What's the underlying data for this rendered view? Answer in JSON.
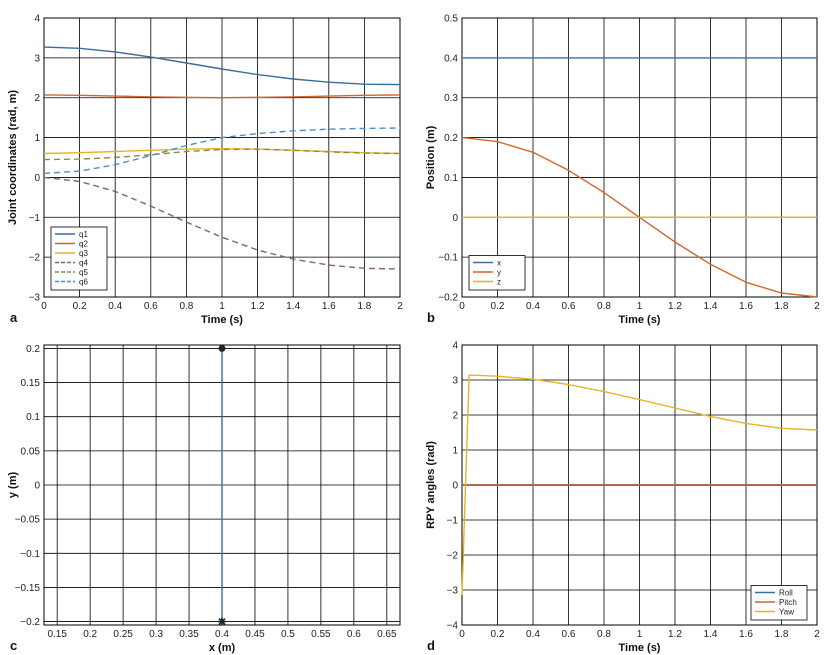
{
  "colors": {
    "blue": "#3a6e9e",
    "orange": "#d4662a",
    "yellow": "#e8b322",
    "purple": "#8c5e78",
    "olive": "#8c8c44",
    "lightblue": "#4a8fc8",
    "grid": "#000000"
  },
  "chart_data": [
    {
      "id": "a",
      "panel_label": "a",
      "type": "line",
      "xlabel": "Time (s)",
      "ylabel": "Joint coordinates (rad, m)",
      "xlim": [
        0,
        2
      ],
      "ylim": [
        -3,
        4
      ],
      "xticks": [
        0,
        0.2,
        0.4,
        0.6,
        0.8,
        1,
        1.2,
        1.4,
        1.6,
        1.8,
        2
      ],
      "yticks": [
        -3,
        -2,
        -1,
        0,
        1,
        2,
        3,
        4
      ],
      "grid": true,
      "legend_position": "bottom-left",
      "x": [
        0,
        0.2,
        0.4,
        0.6,
        0.8,
        1.0,
        1.2,
        1.4,
        1.6,
        1.8,
        2.0
      ],
      "series": [
        {
          "name": "q1",
          "color": "blue",
          "dash": "solid",
          "values": [
            3.27,
            3.24,
            3.15,
            3.02,
            2.87,
            2.72,
            2.58,
            2.47,
            2.39,
            2.34,
            2.33
          ]
        },
        {
          "name": "q2",
          "color": "orange",
          "dash": "solid",
          "values": [
            2.07,
            2.06,
            2.04,
            2.02,
            2.01,
            2.0,
            2.01,
            2.02,
            2.04,
            2.06,
            2.07
          ]
        },
        {
          "name": "q3",
          "color": "yellow",
          "dash": "solid",
          "values": [
            0.6,
            0.62,
            0.65,
            0.68,
            0.71,
            0.72,
            0.71,
            0.68,
            0.65,
            0.62,
            0.6
          ]
        },
        {
          "name": "q4",
          "color": "purple",
          "dash": "dashed",
          "values": [
            0.0,
            -0.1,
            -0.35,
            -0.72,
            -1.12,
            -1.5,
            -1.82,
            -2.05,
            -2.2,
            -2.28,
            -2.3
          ]
        },
        {
          "name": "q5",
          "color": "olive",
          "dash": "dashed",
          "values": [
            0.45,
            0.46,
            0.5,
            0.57,
            0.65,
            0.7,
            0.71,
            0.68,
            0.64,
            0.61,
            0.6
          ]
        },
        {
          "name": "q6",
          "color": "lightblue",
          "dash": "dashed",
          "values": [
            0.1,
            0.16,
            0.32,
            0.55,
            0.8,
            1.0,
            1.1,
            1.17,
            1.21,
            1.23,
            1.24
          ]
        }
      ]
    },
    {
      "id": "b",
      "panel_label": "b",
      "type": "line",
      "xlabel": "Time (s)",
      "ylabel": "Position (m)",
      "xlim": [
        0,
        2
      ],
      "ylim": [
        -0.2,
        0.5
      ],
      "xticks": [
        0,
        0.2,
        0.4,
        0.6,
        0.8,
        1,
        1.2,
        1.4,
        1.6,
        1.8,
        2
      ],
      "yticks": [
        -0.2,
        -0.1,
        0,
        0.1,
        0.2,
        0.3,
        0.4,
        0.5
      ],
      "grid": true,
      "legend_position": "bottom-left",
      "x": [
        0,
        0.2,
        0.4,
        0.6,
        0.8,
        1.0,
        1.2,
        1.4,
        1.6,
        1.8,
        2.0
      ],
      "series": [
        {
          "name": "x",
          "color": "blue",
          "dash": "solid",
          "values": [
            0.4,
            0.4,
            0.4,
            0.4,
            0.4,
            0.4,
            0.4,
            0.4,
            0.4,
            0.4,
            0.4
          ]
        },
        {
          "name": "y",
          "color": "orange",
          "dash": "solid",
          "values": [
            0.2,
            0.19,
            0.163,
            0.118,
            0.062,
            0.0,
            -0.062,
            -0.118,
            -0.163,
            -0.19,
            -0.2
          ]
        },
        {
          "name": "z",
          "color": "yellow",
          "dash": "solid",
          "values": [
            0,
            0,
            0,
            0,
            0,
            0,
            0,
            0,
            0,
            0,
            0
          ]
        }
      ]
    },
    {
      "id": "c",
      "panel_label": "c",
      "type": "line",
      "xlabel": "x (m)",
      "ylabel": "y (m)",
      "xlim": [
        0.13,
        0.67
      ],
      "ylim": [
        -0.205,
        0.205
      ],
      "xticks": [
        0.15,
        0.2,
        0.25,
        0.3,
        0.35,
        0.4,
        0.45,
        0.5,
        0.55,
        0.6,
        0.65
      ],
      "yticks": [
        -0.2,
        -0.15,
        -0.1,
        -0.05,
        0,
        0.05,
        0.1,
        0.15,
        0.2
      ],
      "grid": true,
      "series": [
        {
          "name": "",
          "color": "blue",
          "dash": "solid",
          "x": [
            0.4,
            0.4
          ],
          "values": [
            0.2,
            -0.2
          ]
        }
      ],
      "markers": [
        {
          "x": 0.4,
          "y": 0.2,
          "shape": "circle"
        },
        {
          "x": 0.4,
          "y": -0.2,
          "shape": "star"
        }
      ]
    },
    {
      "id": "d",
      "panel_label": "d",
      "type": "line",
      "xlabel": "Time (s)",
      "ylabel": "RPY angles (rad)",
      "xlim": [
        0,
        2
      ],
      "ylim": [
        -4,
        4
      ],
      "xticks": [
        0,
        0.2,
        0.4,
        0.6,
        0.8,
        1,
        1.2,
        1.4,
        1.6,
        1.8,
        2
      ],
      "yticks": [
        -4,
        -3,
        -2,
        -1,
        0,
        1,
        2,
        3,
        4
      ],
      "grid": true,
      "legend_position": "bottom-right",
      "series": [
        {
          "name": "Roll",
          "color": "blue",
          "dash": "solid",
          "x": [
            0,
            2
          ],
          "values": [
            0,
            0
          ]
        },
        {
          "name": "Pitch",
          "color": "orange",
          "dash": "solid",
          "x": [
            0,
            2
          ],
          "values": [
            0,
            0
          ]
        },
        {
          "name": "Yaw",
          "color": "yellow",
          "dash": "solid",
          "x": [
            0,
            0.04,
            0.2,
            0.4,
            0.6,
            0.8,
            1.0,
            1.2,
            1.4,
            1.6,
            1.8,
            2.0
          ],
          "values": [
            -3.14,
            3.14,
            3.11,
            3.02,
            2.87,
            2.67,
            2.44,
            2.2,
            1.96,
            1.76,
            1.62,
            1.57
          ]
        }
      ]
    }
  ]
}
